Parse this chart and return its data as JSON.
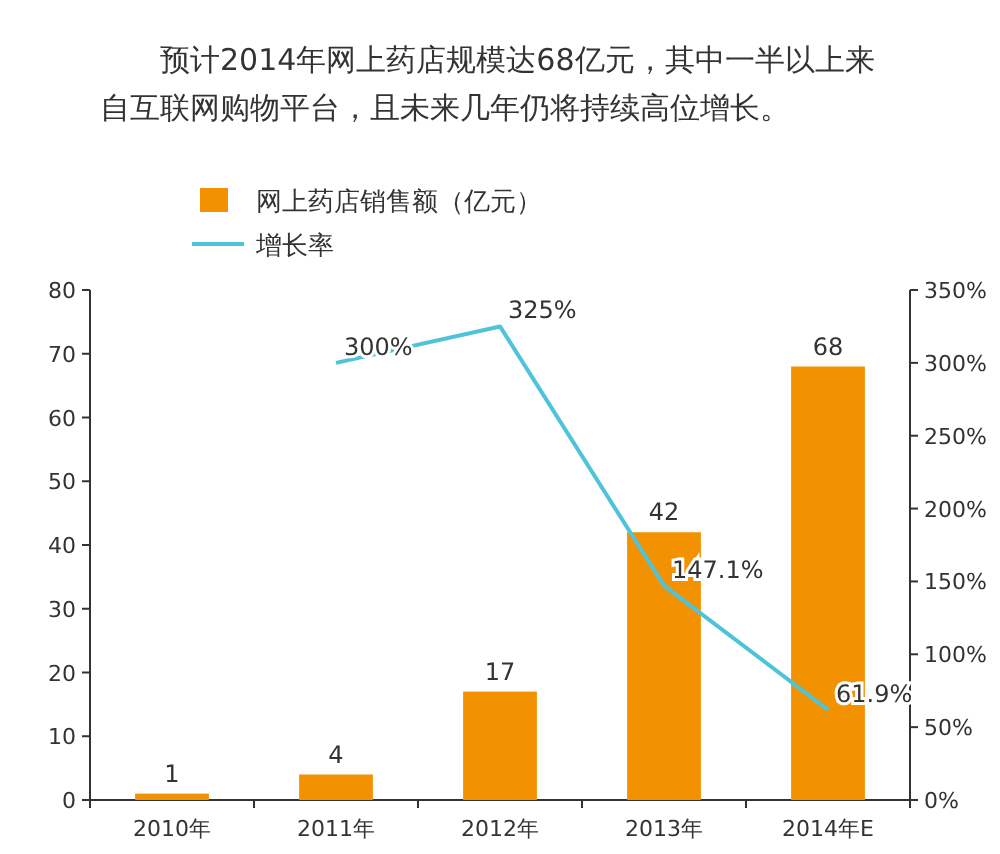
{
  "chart_data": {
    "type": "bar",
    "title": "预计2014年网上药店规模达68亿元，其中一半以上来自互联网购物平台，且未来几年仍将持续高位增长。",
    "categories": [
      "2010年",
      "2011年",
      "2012年",
      "2013年",
      "2014年E"
    ],
    "series": [
      {
        "name": "网上药店销售额（亿元）",
        "color": "#f39200",
        "values": [
          1,
          4,
          17,
          42,
          68
        ],
        "value_labels": [
          "1",
          "4",
          "17",
          "42",
          "68"
        ]
      },
      {
        "name": "增长率",
        "type": "line",
        "axis": "y2",
        "color": "#4fc3d9",
        "values": [
          null,
          300,
          325,
          147.1,
          61.9
        ],
        "value_labels": [
          null,
          "300%",
          "325%",
          "147.1%",
          "61.9%"
        ]
      }
    ],
    "ylim": [
      0,
      80
    ],
    "yticks": [
      0,
      10,
      20,
      30,
      40,
      50,
      60,
      70,
      80
    ],
    "y2lim": [
      0,
      350
    ],
    "y2ticks": [
      {
        "value": 0,
        "label": "0%"
      },
      {
        "value": 50,
        "label": "50%"
      },
      {
        "value": 100,
        "label": "100%"
      },
      {
        "value": 150,
        "label": "150%"
      },
      {
        "value": 200,
        "label": "200%"
      },
      {
        "value": 250,
        "label": "250%"
      },
      {
        "value": 300,
        "label": "300%"
      },
      {
        "value": 350,
        "label": "350%"
      }
    ],
    "grid": false,
    "legend": "top left",
    "marker": "none",
    "line_style": "solid"
  }
}
